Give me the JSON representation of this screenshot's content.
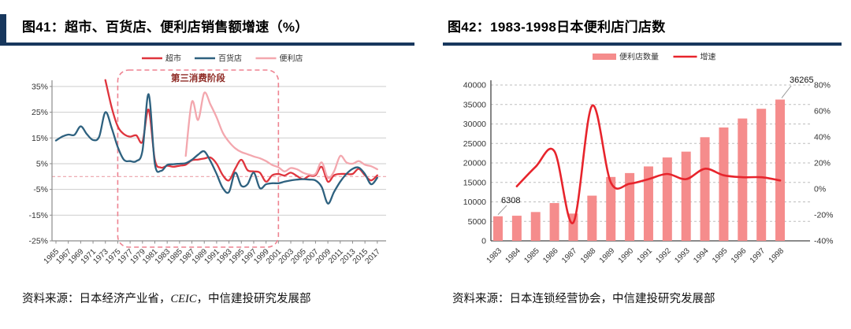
{
  "page": {
    "accent_color": "#17375d",
    "left_panel": {
      "title": "图41：超市、百货店、便利店销售额增速（%）",
      "source_prefix": "资料来源：",
      "source_part1": "日本经济产业省，",
      "source_italic": "CEIC",
      "source_part2": "，中信建投研究发展部"
    },
    "right_panel": {
      "title": "图42：1983-1998日本便利店门店数",
      "source_prefix": "资料来源：",
      "source_part1": "日本连锁经营协会，中信建投研究发展部",
      "source_italic": "",
      "source_part2": ""
    }
  },
  "chart_data": [
    {
      "type": "line",
      "title": "超市、百货店、便利店销售额增速（%）",
      "ylim": [
        -25,
        35
      ],
      "yticks": [
        35,
        25,
        15,
        5,
        -5,
        -15,
        -25
      ],
      "ytick_suffix": "%",
      "zero_line": true,
      "grid": true,
      "legend_position": "top",
      "x_tick_years": [
        1965,
        1967,
        1969,
        1971,
        1973,
        1975,
        1977,
        1979,
        1981,
        1983,
        1985,
        1987,
        1989,
        1991,
        1993,
        1995,
        1997,
        1999,
        2001,
        2003,
        2005,
        2007,
        2009,
        2011,
        2013,
        2015,
        2017
      ],
      "annotation_box": {
        "label": "第三消费阶段",
        "from_year": 1975,
        "to_year": 2001,
        "color": "#ee8290",
        "label_color": "#8e2a24"
      },
      "series": [
        {
          "name": "超市",
          "color": "#df343d",
          "start_year": 1973,
          "values": [
            37.5,
            27,
            19.5,
            16.5,
            15.5,
            16,
            13.5,
            26,
            6.5,
            3.5,
            4.2,
            3.8,
            4.2,
            4.6,
            6.3,
            6.6,
            7,
            7.4,
            5,
            0.5,
            -1.5,
            3,
            6.5,
            2.5,
            2,
            1.5,
            -2,
            0.5,
            1,
            0.4,
            1.5,
            0.2,
            -1,
            0.3,
            0.5,
            3.8,
            -2,
            0.5,
            1,
            1,
            1,
            3,
            0.5,
            -1.5,
            0.5
          ]
        },
        {
          "name": "百货店",
          "color": "#2e617f",
          "start_year": 1965,
          "values": [
            14,
            15.5,
            16.3,
            16.2,
            19.5,
            16.5,
            14.2,
            15.5,
            25,
            19,
            11.5,
            6.5,
            6,
            6,
            10,
            32,
            5,
            2.2,
            4.5,
            4.8,
            5,
            5.2,
            6.5,
            8.5,
            9.8,
            6,
            1,
            -4.5,
            -6,
            1.5,
            -3.6,
            -3,
            1.5,
            -4.5,
            -3,
            -2.6,
            -2.6,
            -2,
            -1.5,
            -1.2,
            -1,
            -1.2,
            -1.5,
            -4,
            -10.5,
            -6,
            -2,
            1,
            3,
            3.5,
            1,
            -3,
            -0.5
          ]
        },
        {
          "name": "便利店",
          "color": "#f3a7ae",
          "start_year": 1986,
          "values": [
            8,
            29,
            22,
            32.5,
            28,
            23,
            17,
            13.5,
            11,
            9.5,
            8.7,
            7.8,
            7.1,
            6,
            4.5,
            3.6,
            2,
            3.3,
            2.8,
            1.5,
            0.8,
            1,
            5.5,
            -0.5,
            2,
            8,
            5.5,
            5,
            6,
            4.6,
            4,
            2.8
          ]
        }
      ]
    },
    {
      "type": "bar",
      "title": "1983-1998日本便利店门店数",
      "categories": [
        "1983",
        "1984",
        "1985",
        "1986",
        "1987",
        "1988",
        "1989",
        "1990",
        "1991",
        "1992",
        "1993",
        "1994",
        "1995",
        "1996",
        "1997",
        "1998"
      ],
      "series": [
        {
          "name": "便利店数量",
          "kind": "bar",
          "color": "#f58c8c",
          "axis": "left",
          "values": [
            6308,
            6450,
            7400,
            9700,
            7000,
            11600,
            16400,
            17400,
            19100,
            21400,
            22900,
            26600,
            29100,
            31400,
            33900,
            36265
          ]
        },
        {
          "name": "增速",
          "kind": "line",
          "color": "#e7242c",
          "axis": "right",
          "values": [
            null,
            2,
            17,
            29,
            -26,
            64,
            5,
            4,
            7.5,
            11.5,
            7.5,
            15.5,
            10.5,
            9,
            9,
            6.5
          ]
        }
      ],
      "y_left": {
        "min": 0,
        "max": 40000,
        "step": 5000
      },
      "y_right": {
        "min": -40,
        "max": 80,
        "step": 20,
        "suffix": "%"
      },
      "grid": "dashed",
      "legend_position": "top",
      "annotations": [
        {
          "text": "6308",
          "category": "1983"
        },
        {
          "text": "36265",
          "category": "1998"
        }
      ]
    }
  ]
}
